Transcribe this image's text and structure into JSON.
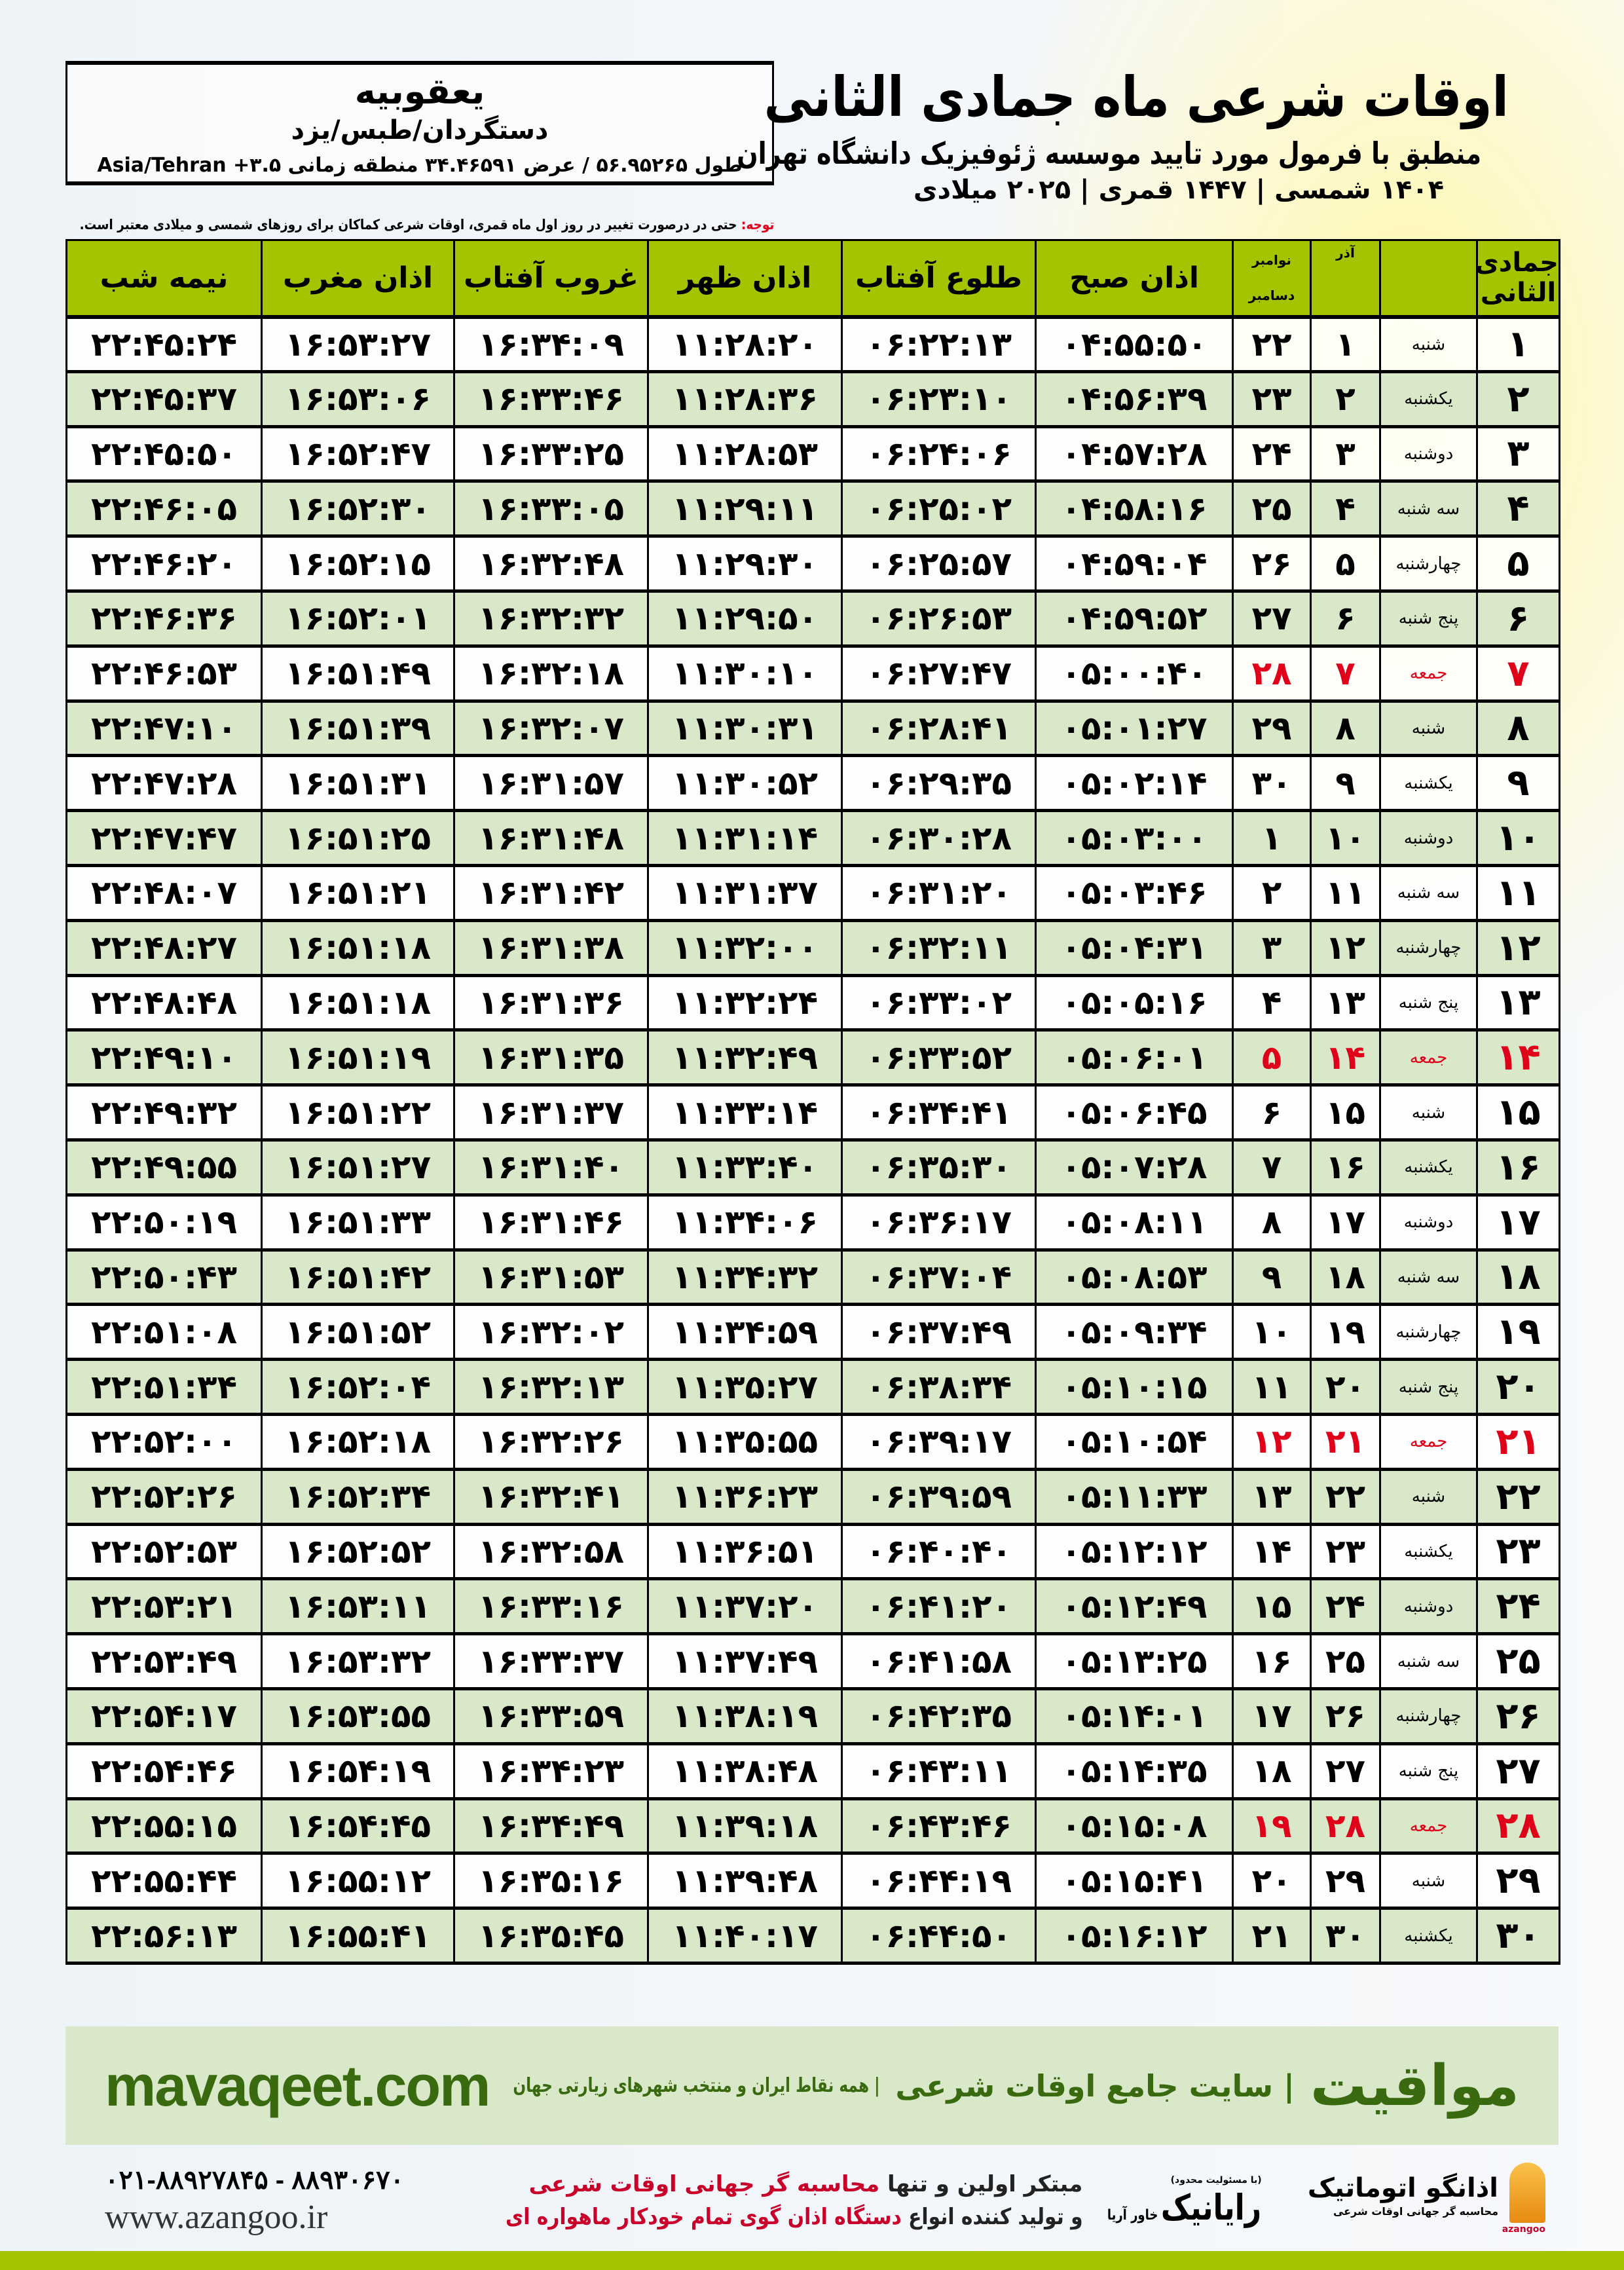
{
  "info": {
    "city": "یعقوبیه",
    "region": "دستگردان/طبس/یزد",
    "coords": "طول ۵۶.۹۵۲۶۵ / عرض ۳۴.۴۶۵۹۱ منطقه زمانی ۳.۵+ Asia/Tehran"
  },
  "header": {
    "title": "اوقات شرعی ماه جمادی الثانی",
    "subtitle": "منطبق با فرمول مورد تایید موسسه ژئوفیزیک دانشگاه تهران",
    "dates": "۱۴۰۴ شمسی | ۱۴۴۷ قمری | ۲۰۲۵ میلادی"
  },
  "note": {
    "label": "توجه:",
    "text": " حتی در درصورت تغییر در روز اول ماه قمری، اوقات شرعی کماکان برای روزهای شمسی و میلادی معتبر است."
  },
  "table": {
    "columns": {
      "hijri": "جمادی الثانی",
      "azar": "آذر",
      "greg_top": "نوامبر",
      "greg_bottom": "دسامبر",
      "fajr": "اذان صبح",
      "sunrise": "طلوع آفتاب",
      "dhuhr": "اذان ظهر",
      "sunset": "غروب آفتاب",
      "maghrib": "اذان مغرب",
      "midnight": "نیمه شب"
    },
    "holiday_color": "#e0001a",
    "rows": [
      [
        "۱",
        "شنبه",
        "۱",
        "۲۲",
        "۰۴:۵۵:۵۰",
        "۰۶:۲۲:۱۳",
        "۱۱:۲۸:۲۰",
        "۱۶:۳۴:۰۹",
        "۱۶:۵۳:۲۷",
        "۲۲:۴۵:۲۴"
      ],
      [
        "۲",
        "یکشنبه",
        "۲",
        "۲۳",
        "۰۴:۵۶:۳۹",
        "۰۶:۲۳:۱۰",
        "۱۱:۲۸:۳۶",
        "۱۶:۳۳:۴۶",
        "۱۶:۵۳:۰۶",
        "۲۲:۴۵:۳۷"
      ],
      [
        "۳",
        "دوشنبه",
        "۳",
        "۲۴",
        "۰۴:۵۷:۲۸",
        "۰۶:۲۴:۰۶",
        "۱۱:۲۸:۵۳",
        "۱۶:۳۳:۲۵",
        "۱۶:۵۲:۴۷",
        "۲۲:۴۵:۵۰"
      ],
      [
        "۴",
        "سه شنبه",
        "۴",
        "۲۵",
        "۰۴:۵۸:۱۶",
        "۰۶:۲۵:۰۲",
        "۱۱:۲۹:۱۱",
        "۱۶:۳۳:۰۵",
        "۱۶:۵۲:۳۰",
        "۲۲:۴۶:۰۵"
      ],
      [
        "۵",
        "چهارشنبه",
        "۵",
        "۲۶",
        "۰۴:۵۹:۰۴",
        "۰۶:۲۵:۵۷",
        "۱۱:۲۹:۳۰",
        "۱۶:۳۲:۴۸",
        "۱۶:۵۲:۱۵",
        "۲۲:۴۶:۲۰"
      ],
      [
        "۶",
        "پنج شنبه",
        "۶",
        "۲۷",
        "۰۴:۵۹:۵۲",
        "۰۶:۲۶:۵۳",
        "۱۱:۲۹:۵۰",
        "۱۶:۳۲:۳۲",
        "۱۶:۵۲:۰۱",
        "۲۲:۴۶:۳۶"
      ],
      [
        "۷",
        "جمعه",
        "۷",
        "۲۸",
        "۰۵:۰۰:۴۰",
        "۰۶:۲۷:۴۷",
        "۱۱:۳۰:۱۰",
        "۱۶:۳۲:۱۸",
        "۱۶:۵۱:۴۹",
        "۲۲:۴۶:۵۳"
      ],
      [
        "۸",
        "شنبه",
        "۸",
        "۲۹",
        "۰۵:۰۱:۲۷",
        "۰۶:۲۸:۴۱",
        "۱۱:۳۰:۳۱",
        "۱۶:۳۲:۰۷",
        "۱۶:۵۱:۳۹",
        "۲۲:۴۷:۱۰"
      ],
      [
        "۹",
        "یکشنبه",
        "۹",
        "۳۰",
        "۰۵:۰۲:۱۴",
        "۰۶:۲۹:۳۵",
        "۱۱:۳۰:۵۲",
        "۱۶:۳۱:۵۷",
        "۱۶:۵۱:۳۱",
        "۲۲:۴۷:۲۸"
      ],
      [
        "۱۰",
        "دوشنبه",
        "۱۰",
        "۱",
        "۰۵:۰۳:۰۰",
        "۰۶:۳۰:۲۸",
        "۱۱:۳۱:۱۴",
        "۱۶:۳۱:۴۸",
        "۱۶:۵۱:۲۵",
        "۲۲:۴۷:۴۷"
      ],
      [
        "۱۱",
        "سه شنبه",
        "۱۱",
        "۲",
        "۰۵:۰۳:۴۶",
        "۰۶:۳۱:۲۰",
        "۱۱:۳۱:۳۷",
        "۱۶:۳۱:۴۲",
        "۱۶:۵۱:۲۱",
        "۲۲:۴۸:۰۷"
      ],
      [
        "۱۲",
        "چهارشنبه",
        "۱۲",
        "۳",
        "۰۵:۰۴:۳۱",
        "۰۶:۳۲:۱۱",
        "۱۱:۳۲:۰۰",
        "۱۶:۳۱:۳۸",
        "۱۶:۵۱:۱۸",
        "۲۲:۴۸:۲۷"
      ],
      [
        "۱۳",
        "پنج شنبه",
        "۱۳",
        "۴",
        "۰۵:۰۵:۱۶",
        "۰۶:۳۳:۰۲",
        "۱۱:۳۲:۲۴",
        "۱۶:۳۱:۳۶",
        "۱۶:۵۱:۱۸",
        "۲۲:۴۸:۴۸"
      ],
      [
        "۱۴",
        "جمعه",
        "۱۴",
        "۵",
        "۰۵:۰۶:۰۱",
        "۰۶:۳۳:۵۲",
        "۱۱:۳۲:۴۹",
        "۱۶:۳۱:۳۵",
        "۱۶:۵۱:۱۹",
        "۲۲:۴۹:۱۰"
      ],
      [
        "۱۵",
        "شنبه",
        "۱۵",
        "۶",
        "۰۵:۰۶:۴۵",
        "۰۶:۳۴:۴۱",
        "۱۱:۳۳:۱۴",
        "۱۶:۳۱:۳۷",
        "۱۶:۵۱:۲۲",
        "۲۲:۴۹:۳۲"
      ],
      [
        "۱۶",
        "یکشنبه",
        "۱۶",
        "۷",
        "۰۵:۰۷:۲۸",
        "۰۶:۳۵:۳۰",
        "۱۱:۳۳:۴۰",
        "۱۶:۳۱:۴۰",
        "۱۶:۵۱:۲۷",
        "۲۲:۴۹:۵۵"
      ],
      [
        "۱۷",
        "دوشنبه",
        "۱۷",
        "۸",
        "۰۵:۰۸:۱۱",
        "۰۶:۳۶:۱۷",
        "۱۱:۳۴:۰۶",
        "۱۶:۳۱:۴۶",
        "۱۶:۵۱:۳۳",
        "۲۲:۵۰:۱۹"
      ],
      [
        "۱۸",
        "سه شنبه",
        "۱۸",
        "۹",
        "۰۵:۰۸:۵۳",
        "۰۶:۳۷:۰۴",
        "۱۱:۳۴:۳۲",
        "۱۶:۳۱:۵۳",
        "۱۶:۵۱:۴۲",
        "۲۲:۵۰:۴۳"
      ],
      [
        "۱۹",
        "چهارشنبه",
        "۱۹",
        "۱۰",
        "۰۵:۰۹:۳۴",
        "۰۶:۳۷:۴۹",
        "۱۱:۳۴:۵۹",
        "۱۶:۳۲:۰۲",
        "۱۶:۵۱:۵۲",
        "۲۲:۵۱:۰۸"
      ],
      [
        "۲۰",
        "پنج شنبه",
        "۲۰",
        "۱۱",
        "۰۵:۱۰:۱۵",
        "۰۶:۳۸:۳۴",
        "۱۱:۳۵:۲۷",
        "۱۶:۳۲:۱۳",
        "۱۶:۵۲:۰۴",
        "۲۲:۵۱:۳۴"
      ],
      [
        "۲۱",
        "جمعه",
        "۲۱",
        "۱۲",
        "۰۵:۱۰:۵۴",
        "۰۶:۳۹:۱۷",
        "۱۱:۳۵:۵۵",
        "۱۶:۳۲:۲۶",
        "۱۶:۵۲:۱۸",
        "۲۲:۵۲:۰۰"
      ],
      [
        "۲۲",
        "شنبه",
        "۲۲",
        "۱۳",
        "۰۵:۱۱:۳۳",
        "۰۶:۳۹:۵۹",
        "۱۱:۳۶:۲۳",
        "۱۶:۳۲:۴۱",
        "۱۶:۵۲:۳۴",
        "۲۲:۵۲:۲۶"
      ],
      [
        "۲۳",
        "یکشنبه",
        "۲۳",
        "۱۴",
        "۰۵:۱۲:۱۲",
        "۰۶:۴۰:۴۰",
        "۱۱:۳۶:۵۱",
        "۱۶:۳۲:۵۸",
        "۱۶:۵۲:۵۲",
        "۲۲:۵۲:۵۳"
      ],
      [
        "۲۴",
        "دوشنبه",
        "۲۴",
        "۱۵",
        "۰۵:۱۲:۴۹",
        "۰۶:۴۱:۲۰",
        "۱۱:۳۷:۲۰",
        "۱۶:۳۳:۱۶",
        "۱۶:۵۳:۱۱",
        "۲۲:۵۳:۲۱"
      ],
      [
        "۲۵",
        "سه شنبه",
        "۲۵",
        "۱۶",
        "۰۵:۱۳:۲۵",
        "۰۶:۴۱:۵۸",
        "۱۱:۳۷:۴۹",
        "۱۶:۳۳:۳۷",
        "۱۶:۵۳:۳۲",
        "۲۲:۵۳:۴۹"
      ],
      [
        "۲۶",
        "چهارشنبه",
        "۲۶",
        "۱۷",
        "۰۵:۱۴:۰۱",
        "۰۶:۴۲:۳۵",
        "۱۱:۳۸:۱۹",
        "۱۶:۳۳:۵۹",
        "۱۶:۵۳:۵۵",
        "۲۲:۵۴:۱۷"
      ],
      [
        "۲۷",
        "پنج شنبه",
        "۲۷",
        "۱۸",
        "۰۵:۱۴:۳۵",
        "۰۶:۴۳:۱۱",
        "۱۱:۳۸:۴۸",
        "۱۶:۳۴:۲۳",
        "۱۶:۵۴:۱۹",
        "۲۲:۵۴:۴۶"
      ],
      [
        "۲۸",
        "جمعه",
        "۲۸",
        "۱۹",
        "۰۵:۱۵:۰۸",
        "۰۶:۴۳:۴۶",
        "۱۱:۳۹:۱۸",
        "۱۶:۳۴:۴۹",
        "۱۶:۵۴:۴۵",
        "۲۲:۵۵:۱۵"
      ],
      [
        "۲۹",
        "شنبه",
        "۲۹",
        "۲۰",
        "۰۵:۱۵:۴۱",
        "۰۶:۴۴:۱۹",
        "۱۱:۳۹:۴۸",
        "۱۶:۳۵:۱۶",
        "۱۶:۵۵:۱۲",
        "۲۲:۵۵:۴۴"
      ],
      [
        "۳۰",
        "یکشنبه",
        "۳۰",
        "۲۱",
        "۰۵:۱۶:۱۲",
        "۰۶:۴۴:۵۰",
        "۱۱:۴۰:۱۷",
        "۱۶:۳۵:۴۵",
        "۱۶:۵۵:۴۱",
        "۲۲:۵۶:۱۳"
      ]
    ]
  },
  "footer": {
    "brand": "مواقیت",
    "slogan": "| سایت جامع اوقات شرعی",
    "tagline": "| همه نقاط ایران و منتخب شهرهای زیارتی جهان",
    "url": "mavaqeet.com",
    "phone": "۰۲۱-۸۸۹۲۷۸۴۵ - ۸۸۹۳۰۶۷۰",
    "website": "www.azangoo.ir",
    "ad_line1_a": "مبتکر اولین و تنها ",
    "ad_line1_b": "محاسبه گر جهانی اوقات شرعی",
    "ad_line2_a": "و تولید کننده انواع ",
    "ad_line2_b": "دستگاه اذان گوی تمام خودکار ماهواره ای",
    "logo2_small": "(با مسئولیت محدود)",
    "logo2_name": "رایانیک",
    "logo2_sub": "خاور آریا",
    "logo1_name": "اذانگو اتوماتیک",
    "logo1_sub": "محاسبه گر جهانی اوقات شرعی",
    "logo1_en": "azangoo",
    "accent": "#a5c400",
    "brand_color": "#3a6a10"
  }
}
